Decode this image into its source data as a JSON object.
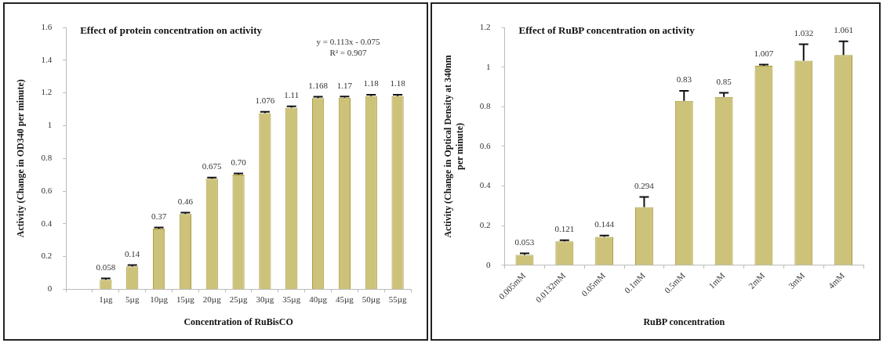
{
  "chart_data": [
    {
      "type": "bar",
      "title": "Effect of protein concentration on activity",
      "xlabel": "Concentration of RuBisCO",
      "ylabel": "Activity (Change in OD340 per minute)",
      "categories": [
        null,
        "1µg",
        "5µg",
        "10µg",
        "15µg",
        "20µg",
        "25µg",
        "30µg",
        "35µg",
        "40µg",
        "45µg",
        "50µg",
        "55µg"
      ],
      "values": [
        null,
        0.058,
        0.14,
        0.37,
        0.46,
        0.675,
        0.7,
        1.076,
        1.11,
        1.168,
        1.17,
        1.18,
        1.18
      ],
      "value_labels": [
        null,
        "0.058",
        "0.14",
        "0.37",
        "0.46",
        "0.675",
        "0.70",
        "1.076",
        "1.11",
        "1.168",
        "1.17",
        "1.18",
        "1.18"
      ],
      "errors": [
        null,
        [
          0.058,
          0.066
        ],
        [
          0.14,
          0.148
        ],
        [
          0.37,
          0.378
        ],
        [
          0.46,
          0.468
        ],
        [
          0.675,
          0.683
        ],
        [
          0.7,
          0.708
        ],
        [
          1.076,
          1.084
        ],
        [
          1.11,
          1.118
        ],
        [
          1.168,
          1.176
        ],
        [
          1.17,
          1.178
        ],
        [
          1.18,
          1.188
        ],
        [
          1.18,
          1.188
        ]
      ],
      "color": "#cdc27a",
      "ylim": [
        0,
        1.6
      ],
      "yticks": [
        0,
        0.2,
        0.4,
        0.6,
        0.8,
        1,
        1.2,
        1.4,
        1.6
      ],
      "grid": false,
      "legend": false,
      "annotations": [
        "y = 0.113x - 0.075",
        "R² = 0.907"
      ]
    },
    {
      "type": "bar",
      "title": "Effect of RuBP concentration on activity",
      "xlabel": "RuBP concentration",
      "ylabel": "Activity (Change in Optical Density at 340nm per minute)",
      "categories": [
        "0.005mM",
        "0.0132mM",
        "0.05mM",
        "0.1mM",
        "0.5mM",
        "1mM",
        "2mM",
        "3mM",
        "4mM"
      ],
      "values": [
        0.053,
        0.121,
        0.144,
        0.294,
        0.83,
        0.85,
        1.007,
        1.032,
        1.061
      ],
      "value_labels": [
        "0.053",
        "0.121",
        "0.144",
        "0.294",
        "0.83",
        "0.85",
        "1.007",
        "1.032",
        "1.061"
      ],
      "errors": [
        [
          0.053,
          0.061
        ],
        [
          0.121,
          0.127
        ],
        [
          0.144,
          0.151
        ],
        [
          0.294,
          0.345
        ],
        [
          0.83,
          0.88
        ],
        [
          0.85,
          0.87
        ],
        [
          1.007,
          1.012
        ],
        [
          1.032,
          1.115
        ],
        [
          1.061,
          1.13
        ]
      ],
      "color": "#cdc27a",
      "ylim": [
        0,
        1.2
      ],
      "yticks": [
        0,
        0.2,
        0.4,
        0.6,
        0.8,
        1,
        1.2
      ],
      "grid": false,
      "legend": false
    }
  ]
}
